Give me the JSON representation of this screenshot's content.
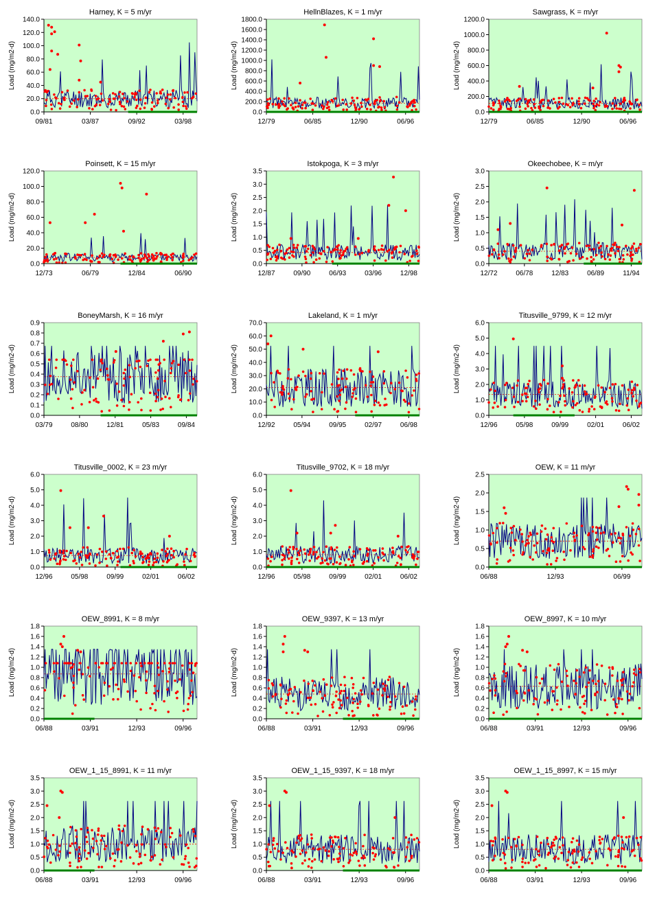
{
  "ylabel": "Load (mg/m2-d)",
  "colors": {
    "plot_bg": "#ccffcc",
    "model_line": "#000080",
    "observed_points": "#ff0000",
    "mean_line": "#ff0000",
    "period_bar": "#008000",
    "axis": "#000000"
  },
  "chart_data": [
    {
      "type": "line",
      "title": "Harney,   K = 5  m/yr",
      "ylim": [
        0,
        140
      ],
      "yticks": [
        "0.0",
        "20.0",
        "40.0",
        "60.0",
        "80.0",
        "100.0",
        "120.0",
        "140.0"
      ],
      "xticks": [
        "09/81",
        "03/87",
        "09/92",
        "03/98"
      ],
      "mean": 20,
      "period": [
        0.55,
        1.0
      ],
      "seed": 11,
      "outliers": [
        [
          0.03,
          131
        ],
        [
          0.05,
          128
        ],
        [
          0.07,
          121
        ],
        [
          0.05,
          118
        ],
        [
          0.05,
          92
        ],
        [
          0.09,
          87
        ],
        [
          0.04,
          64
        ],
        [
          0.23,
          101
        ],
        [
          0.24,
          77
        ],
        [
          0.23,
          48
        ],
        [
          0.37,
          45
        ]
      ]
    },
    {
      "type": "line",
      "title": "HellnBlazes,   K = 1  m/yr",
      "ylim": [
        0,
        1800
      ],
      "yticks": [
        "0.0",
        "200.0",
        "400.0",
        "600.0",
        "800.0",
        "1000.0",
        "1200.0",
        "1400.0",
        "1600.0",
        "1800.0"
      ],
      "xticks": [
        "12/79",
        "06/85",
        "12/90",
        "06/96"
      ],
      "mean": 170,
      "period": [
        0.0,
        1.0
      ],
      "seed": 23,
      "outliers": [
        [
          0.38,
          1690
        ],
        [
          0.39,
          1060
        ],
        [
          0.7,
          1420
        ],
        [
          0.7,
          900
        ],
        [
          0.74,
          880
        ],
        [
          0.22,
          560
        ]
      ]
    },
    {
      "type": "line",
      "title": "Sawgrass,   K =   m/yr",
      "ylim": [
        0,
        1200
      ],
      "yticks": [
        "0.0",
        "200.0",
        "400.0",
        "600.0",
        "800.0",
        "1000.0",
        "1200.0"
      ],
      "xticks": [
        "12/79",
        "06/85",
        "12/90",
        "06/96"
      ],
      "mean": 110,
      "period": [
        0.0,
        1.0
      ],
      "seed": 37,
      "outliers": [
        [
          0.77,
          1020
        ],
        [
          0.85,
          600
        ],
        [
          0.86,
          580
        ],
        [
          0.85,
          520
        ],
        [
          0.68,
          310
        ],
        [
          0.2,
          330
        ]
      ]
    },
    {
      "type": "line",
      "title": "Poinsett,   K = 15  m/yr",
      "ylim": [
        0,
        120
      ],
      "yticks": [
        "0.0",
        "20.0",
        "40.0",
        "60.0",
        "80.0",
        "100.0",
        "120.0"
      ],
      "xticks": [
        "12/73",
        "06/79",
        "12/84",
        "06/90"
      ],
      "mean": 8,
      "period": [
        0.5,
        1.0
      ],
      "seed": 41,
      "outliers": [
        [
          0.5,
          104
        ],
        [
          0.51,
          98
        ],
        [
          0.67,
          90
        ],
        [
          0.33,
          64
        ],
        [
          0.27,
          53
        ],
        [
          0.04,
          53
        ],
        [
          0.52,
          42
        ]
      ]
    },
    {
      "type": "line",
      "title": "Istokpoga,   K = 3  m/yr",
      "ylim": [
        0,
        3.5
      ],
      "yticks": [
        "0.0",
        "0.5",
        "1.0",
        "1.5",
        "2.0",
        "2.5",
        "3.0",
        "3.5"
      ],
      "xticks": [
        "12/87",
        "09/90",
        "06/93",
        "03/96",
        "12/98"
      ],
      "mean": 0.42,
      "period": [
        0.43,
        1.0
      ],
      "seed": 53,
      "outliers": [
        [
          0.83,
          3.27
        ],
        [
          0.91,
          2.0
        ],
        [
          0.8,
          2.2
        ],
        [
          0.16,
          0.95
        ],
        [
          0.6,
          0.95
        ]
      ]
    },
    {
      "type": "line",
      "title": "Okeechobee,   K =   m/yr",
      "ylim": [
        0,
        3.0
      ],
      "yticks": [
        "0.0",
        "0.5",
        "1.0",
        "1.5",
        "2.0",
        "2.5",
        "3.0"
      ],
      "xticks": [
        "12/72",
        "06/78",
        "12/83",
        "06/89",
        "11/94"
      ],
      "mean": 0.4,
      "period": [
        0.62,
        1.0
      ],
      "seed": 67,
      "outliers": [
        [
          0.38,
          2.45
        ],
        [
          0.95,
          2.37
        ],
        [
          0.87,
          1.25
        ],
        [
          0.06,
          1.1
        ],
        [
          0.14,
          1.3
        ]
      ]
    },
    {
      "type": "line",
      "title": "BoneyMarsh,   K = 16  m/yr",
      "ylim": [
        0,
        0.9
      ],
      "yticks": [
        "0.0",
        "0.1",
        "0.2",
        "0.3",
        "0.4",
        "0.5",
        "0.6",
        "0.7",
        "0.8",
        "0.9"
      ],
      "xticks": [
        "03/79",
        "08/80",
        "12/81",
        "05/83",
        "09/84"
      ],
      "mean": 0.375,
      "period": [
        0.37,
        1.0
      ],
      "seed": 71,
      "outliers": [
        [
          0.95,
          0.81
        ],
        [
          0.91,
          0.79
        ],
        [
          0.78,
          0.72
        ],
        [
          0.47,
          0.62
        ]
      ]
    },
    {
      "type": "line",
      "title": "Lakeland,   K = 1  m/yr",
      "ylim": [
        0,
        70
      ],
      "yticks": [
        "0.0",
        "10.0",
        "20.0",
        "30.0",
        "40.0",
        "50.0",
        "60.0",
        "70.0"
      ],
      "xticks": [
        "12/92",
        "05/94",
        "09/95",
        "02/97",
        "06/98"
      ],
      "mean": 21,
      "period": [
        0.58,
        1.0
      ],
      "seed": 83,
      "outliers": [
        [
          0.03,
          60
        ],
        [
          0.01,
          54
        ],
        [
          0.73,
          48
        ],
        [
          0.24,
          50
        ]
      ]
    },
    {
      "type": "line",
      "title": "Titusville_9799,   K = 12  m/yr",
      "ylim": [
        0,
        6.0
      ],
      "yticks": [
        "0.0",
        "1.0",
        "2.0",
        "3.0",
        "4.0",
        "5.0",
        "6.0"
      ],
      "xticks": [
        "12/96",
        "05/98",
        "09/99",
        "02/01",
        "06/02"
      ],
      "mean": 1.35,
      "period": [
        0.16,
        0.56
      ],
      "seed": 97,
      "outliers": [
        [
          0.16,
          4.95
        ],
        [
          0.48,
          3.2
        ],
        [
          0.48,
          2.4
        ]
      ]
    },
    {
      "type": "line",
      "title": "Titusville_0002,   K = 23  m/yr",
      "ylim": [
        0,
        6.0
      ],
      "yticks": [
        "0.0",
        "1.0",
        "2.0",
        "3.0",
        "4.0",
        "5.0",
        "6.0"
      ],
      "xticks": [
        "12/96",
        "05/98",
        "09/99",
        "02/01",
        "06/02"
      ],
      "mean": 0.75,
      "period": [
        0.5,
        1.0
      ],
      "seed": 101,
      "outliers": [
        [
          0.11,
          4.95
        ],
        [
          0.39,
          3.3
        ],
        [
          0.29,
          2.55
        ],
        [
          0.17,
          2.55
        ],
        [
          0.82,
          2.0
        ]
      ]
    },
    {
      "type": "line",
      "title": "Titusville_9702,   K = 18  m/yr",
      "ylim": [
        0,
        6.0
      ],
      "yticks": [
        "0.0",
        "1.0",
        "2.0",
        "3.0",
        "4.0",
        "5.0",
        "6.0"
      ],
      "xticks": [
        "12/96",
        "05/98",
        "09/99",
        "02/01",
        "06/02"
      ],
      "mean": 0.8,
      "period": [
        0.0,
        1.0
      ],
      "seed": 103,
      "outliers": [
        [
          0.16,
          4.95
        ],
        [
          0.45,
          2.7
        ],
        [
          0.42,
          2.2
        ],
        [
          0.86,
          2.0
        ],
        [
          0.2,
          2.2
        ]
      ]
    },
    {
      "type": "line",
      "title": "OEW,   K = 11  m/yr",
      "ylim": [
        0,
        2.5
      ],
      "yticks": [
        "0.0",
        "0.5",
        "1.0",
        "1.5",
        "2.0",
        "2.5"
      ],
      "xticks": [
        "06/88",
        "12/93",
        "06/99"
      ],
      "mean": 0.7,
      "period": [
        0.0,
        1.0
      ],
      "seed": 107,
      "outliers": [
        [
          0.9,
          2.17
        ],
        [
          0.91,
          2.1
        ],
        [
          0.98,
          1.96
        ],
        [
          0.98,
          1.67
        ],
        [
          0.85,
          1.63
        ],
        [
          0.1,
          1.6
        ],
        [
          0.11,
          1.45
        ]
      ]
    },
    {
      "type": "line",
      "title": "OEW_8991,   K = 8  m/yr",
      "ylim": [
        0,
        1.8
      ],
      "yticks": [
        "0.0",
        "0.2",
        "0.4",
        "0.6",
        "0.8",
        "1.0",
        "1.2",
        "1.4",
        "1.6",
        "1.8"
      ],
      "xticks": [
        "06/88",
        "03/91",
        "12/93",
        "09/96"
      ],
      "mean": 0.87,
      "period": [
        0.0,
        0.33
      ],
      "seed": 113,
      "outliers": [
        [
          0.13,
          1.6
        ],
        [
          0.11,
          1.45
        ],
        [
          0.12,
          1.4
        ],
        [
          0.22,
          1.33
        ],
        [
          0.24,
          1.3
        ]
      ]
    },
    {
      "type": "line",
      "title": "OEW_9397,   K = 13  m/yr",
      "ylim": [
        0,
        1.8
      ],
      "yticks": [
        "0.0",
        "0.2",
        "0.4",
        "0.6",
        "0.8",
        "1.0",
        "1.2",
        "1.4",
        "1.6",
        "1.8"
      ],
      "xticks": [
        "06/88",
        "03/91",
        "12/93",
        "09/96"
      ],
      "mean": 0.48,
      "period": [
        0.5,
        1.0
      ],
      "seed": 127,
      "outliers": [
        [
          0.12,
          1.6
        ],
        [
          0.11,
          1.45
        ],
        [
          0.11,
          1.3
        ],
        [
          0.25,
          1.33
        ],
        [
          0.27,
          1.3
        ]
      ]
    },
    {
      "type": "line",
      "title": "OEW_8997,   K = 10  m/yr",
      "ylim": [
        0,
        1.8
      ],
      "yticks": [
        "0.0",
        "0.2",
        "0.4",
        "0.6",
        "0.8",
        "1.0",
        "1.2",
        "1.4",
        "1.6",
        "1.8"
      ],
      "xticks": [
        "06/88",
        "03/91",
        "12/93",
        "09/96"
      ],
      "mean": 0.63,
      "period": [
        0.0,
        1.0
      ],
      "seed": 131,
      "outliers": [
        [
          0.13,
          1.6
        ],
        [
          0.12,
          1.45
        ],
        [
          0.11,
          1.4
        ],
        [
          0.22,
          1.33
        ],
        [
          0.25,
          1.3
        ]
      ]
    },
    {
      "type": "line",
      "title": "OEW_1_15_8991,   K = 11  m/yr",
      "ylim": [
        0,
        3.5
      ],
      "yticks": [
        "0.0",
        "0.5",
        "1.0",
        "1.5",
        "2.0",
        "2.5",
        "3.0",
        "3.5"
      ],
      "xticks": [
        "06/88",
        "03/91",
        "12/93",
        "09/96"
      ],
      "mean": 1.0,
      "period": [
        0.0,
        0.33
      ],
      "seed": 137,
      "outliers": [
        [
          0.11,
          3.0
        ],
        [
          0.12,
          2.95
        ],
        [
          0.02,
          2.45
        ],
        [
          0.1,
          2.0
        ]
      ]
    },
    {
      "type": "line",
      "title": "OEW_1_15_9397,   K = 18  m/yr",
      "ylim": [
        0,
        3.5
      ],
      "yticks": [
        "0.0",
        "0.5",
        "1.0",
        "1.5",
        "2.0",
        "2.5",
        "3.0",
        "3.5"
      ],
      "xticks": [
        "06/88",
        "03/91",
        "12/93",
        "09/96"
      ],
      "mean": 0.8,
      "period": [
        0.5,
        1.0
      ],
      "seed": 139,
      "outliers": [
        [
          0.12,
          3.0
        ],
        [
          0.13,
          2.95
        ],
        [
          0.02,
          2.45
        ],
        [
          0.84,
          2.0
        ]
      ]
    },
    {
      "type": "line",
      "title": "OEW_1_15_8997,   K = 15  m/yr",
      "ylim": [
        0,
        3.5
      ],
      "yticks": [
        "0.0",
        "0.5",
        "1.0",
        "1.5",
        "2.0",
        "2.5",
        "3.0",
        "3.5"
      ],
      "xticks": [
        "06/88",
        "03/91",
        "12/93",
        "09/96"
      ],
      "mean": 0.8,
      "period": [
        0.0,
        1.0
      ],
      "seed": 149,
      "outliers": [
        [
          0.11,
          3.0
        ],
        [
          0.12,
          2.95
        ],
        [
          0.02,
          2.45
        ],
        [
          0.88,
          2.0
        ]
      ]
    }
  ]
}
